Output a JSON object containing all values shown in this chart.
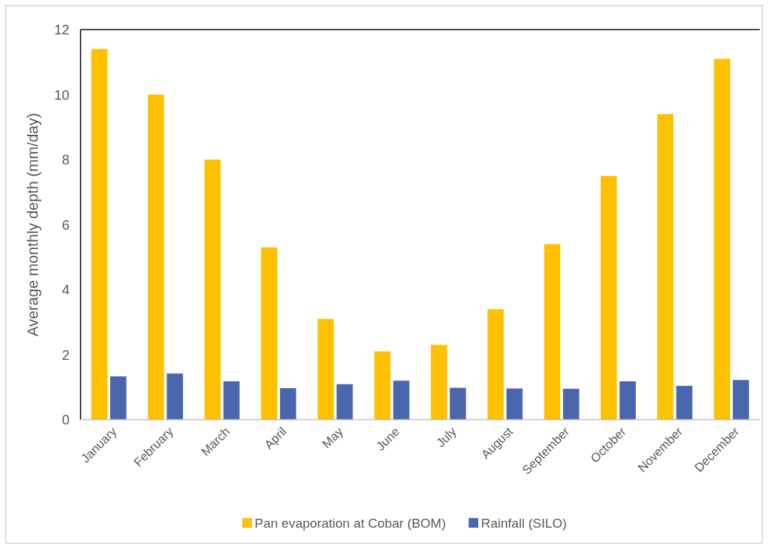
{
  "chart_data": {
    "type": "bar",
    "ylabel": "Average monthly depth (mm/day)",
    "categories": [
      "January",
      "February",
      "March",
      "April",
      "May",
      "June",
      "July",
      "August",
      "September",
      "October",
      "November",
      "December"
    ],
    "series": [
      {
        "name": "Pan evaporation at Cobar (BOM)",
        "color": "#ffc000",
        "values": [
          11.4,
          10.0,
          8.0,
          5.3,
          3.1,
          2.1,
          2.3,
          3.4,
          5.4,
          7.5,
          9.4,
          11.1
        ]
      },
      {
        "name": "Rainfall (SILO)",
        "color": "#4a66ac",
        "values": [
          1.33,
          1.42,
          1.18,
          0.97,
          1.09,
          1.2,
          0.98,
          0.96,
          0.95,
          1.18,
          1.04,
          1.22
        ]
      }
    ],
    "ylim": [
      0,
      12
    ],
    "yticks": [
      0,
      2,
      4,
      6,
      8,
      10,
      12
    ],
    "grid": false,
    "legend": "bottom"
  }
}
